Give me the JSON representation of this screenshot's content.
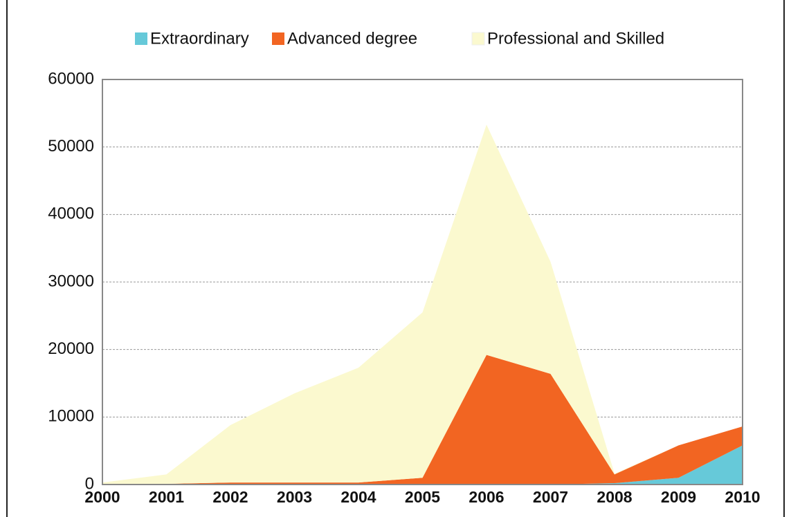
{
  "chart_data": {
    "type": "stacked_area",
    "x": [
      "2000",
      "2001",
      "2002",
      "2003",
      "2004",
      "2005",
      "2006",
      "2007",
      "2008",
      "2009",
      "2010"
    ],
    "series": [
      {
        "name": "Extraordinary",
        "color": "#66c9d9",
        "values": [
          0,
          0,
          0,
          0,
          0,
          0,
          0,
          0,
          200,
          1000,
          5800
        ]
      },
      {
        "name": "Advanced degree",
        "color": "#f26522",
        "values": [
          0,
          100,
          300,
          300,
          300,
          1000,
          19200,
          16400,
          1300,
          4800,
          2800
        ]
      },
      {
        "name": "Professional and Skilled",
        "color": "#fbf9cf",
        "values": [
          300,
          1400,
          8500,
          13200,
          17000,
          24500,
          34100,
          16600,
          100,
          0,
          0
        ]
      }
    ],
    "ylim": [
      0,
      60000
    ],
    "yticks": [
      0,
      10000,
      20000,
      30000,
      40000,
      50000,
      60000
    ],
    "grid": true,
    "legend": "top"
  }
}
